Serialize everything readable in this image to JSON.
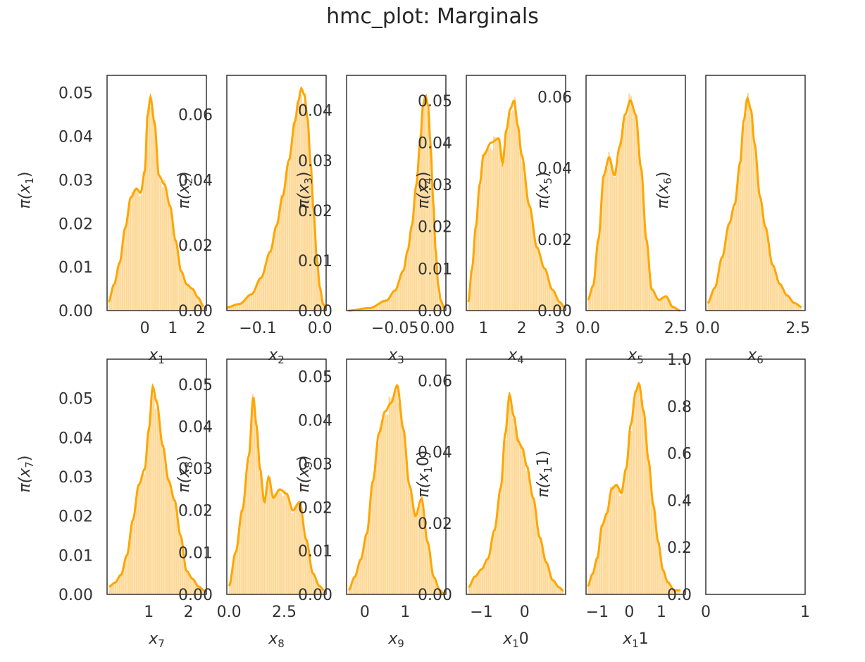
{
  "figure": {
    "title": "hmc_plot: Marginals"
  },
  "colors": {
    "hist_fill": "#fdd080",
    "kde": "#ffa500",
    "axes": "#262626",
    "text": "#333333"
  },
  "chart_data": [
    {
      "type": "area",
      "ylabel_base": "π(x",
      "ylabel_sub": "1",
      "xlabel_base": "x",
      "xlabel_sub": "1",
      "xlim": [
        -1.35,
        2.2
      ],
      "ylim": [
        0,
        0.054
      ],
      "xticks": [
        0,
        1,
        2
      ],
      "xtick_labels": [
        "0",
        "1",
        "2"
      ],
      "yticks": [
        0,
        0.01,
        0.02,
        0.03,
        0.04,
        0.05
      ],
      "ytick_labels": [
        "0.00",
        "0.01",
        "0.02",
        "0.03",
        "0.04",
        "0.05"
      ],
      "x": [
        -1.3,
        -1.1,
        -0.9,
        -0.7,
        -0.5,
        -0.3,
        -0.15,
        0,
        0.1,
        0.2,
        0.35,
        0.5,
        0.7,
        0.9,
        1.1,
        1.3,
        1.5,
        1.7,
        1.9,
        2.1
      ],
      "y": [
        0.002,
        0.006,
        0.011,
        0.019,
        0.026,
        0.028,
        0.027,
        0.032,
        0.045,
        0.049,
        0.043,
        0.031,
        0.029,
        0.024,
        0.016,
        0.009,
        0.006,
        0.005,
        0.003,
        0.001
      ]
    },
    {
      "type": "area",
      "ylabel_base": "π(x",
      "ylabel_sub": "2",
      "xlabel_base": "x",
      "xlabel_sub": "2",
      "xlim": [
        -0.15,
        0.01
      ],
      "ylim": [
        0,
        0.072
      ],
      "xticks": [
        -0.1,
        -0.0
      ],
      "xtick_labels": [
        "−0.1",
        "0.0"
      ],
      "yticks": [
        0,
        0.02,
        0.04,
        0.06
      ],
      "ytick_labels": [
        "0.00",
        "0.02",
        "0.04",
        "0.06"
      ],
      "x": [
        -0.15,
        -0.13,
        -0.11,
        -0.095,
        -0.08,
        -0.07,
        -0.06,
        -0.05,
        -0.04,
        -0.035,
        -0.03,
        -0.025,
        -0.02,
        -0.015,
        -0.01,
        -0.005,
        0,
        0.005,
        0.01
      ],
      "y": [
        0.001,
        0.002,
        0.005,
        0.01,
        0.018,
        0.026,
        0.035,
        0.046,
        0.058,
        0.064,
        0.068,
        0.066,
        0.059,
        0.045,
        0.03,
        0.016,
        0.007,
        0.002,
        0.001
      ]
    },
    {
      "type": "area",
      "ylabel_base": "π(x",
      "ylabel_sub": "3",
      "xlabel_base": "x",
      "xlabel_sub": "3",
      "xlim": [
        -0.107,
        0.01
      ],
      "ylim": [
        0,
        0.047
      ],
      "xticks": [
        -0.05,
        0.0
      ],
      "xtick_labels": [
        "−0.05",
        "0.00"
      ],
      "yticks": [
        0,
        0.01,
        0.02,
        0.03,
        0.04
      ],
      "ytick_labels": [
        "0.00",
        "0.01",
        "0.02",
        "0.03",
        "0.04"
      ],
      "x": [
        -0.105,
        -0.08,
        -0.06,
        -0.05,
        -0.04,
        -0.035,
        -0.03,
        -0.025,
        -0.02,
        -0.017,
        -0.014,
        -0.011,
        -0.008,
        -0.005,
        -0.002,
        0.001,
        0.004,
        0.008
      ],
      "y": [
        0,
        0.0005,
        0.002,
        0.004,
        0.008,
        0.012,
        0.017,
        0.025,
        0.034,
        0.041,
        0.043,
        0.041,
        0.033,
        0.022,
        0.012,
        0.005,
        0.002,
        0.0005
      ]
    },
    {
      "type": "area",
      "ylabel_base": "π(x",
      "ylabel_sub": "4",
      "xlabel_base": "x",
      "xlabel_sub": "4",
      "xlim": [
        0.55,
        3.15
      ],
      "ylim": [
        0,
        0.056
      ],
      "xticks": [
        1,
        2,
        3
      ],
      "xtick_labels": [
        "1",
        "2",
        "3"
      ],
      "yticks": [
        0,
        0.01,
        0.02,
        0.03,
        0.04,
        0.05
      ],
      "ytick_labels": [
        "0.00",
        "0.01",
        "0.02",
        "0.03",
        "0.04",
        "0.05"
      ],
      "x": [
        0.6,
        0.7,
        0.8,
        0.9,
        1.0,
        1.2,
        1.4,
        1.5,
        1.6,
        1.7,
        1.8,
        1.9,
        2.0,
        2.2,
        2.4,
        2.6,
        2.8,
        3.0,
        3.1
      ],
      "y": [
        0.002,
        0.01,
        0.02,
        0.03,
        0.037,
        0.04,
        0.041,
        0.035,
        0.043,
        0.048,
        0.05,
        0.044,
        0.037,
        0.025,
        0.015,
        0.01,
        0.005,
        0.002,
        0.001
      ]
    },
    {
      "type": "area",
      "ylabel_base": "π(x",
      "ylabel_sub": "5",
      "xlabel_base": "x",
      "xlabel_sub": "5",
      "xlim": [
        -0.05,
        2.75
      ],
      "ylim": [
        0,
        0.066
      ],
      "xticks": [
        0,
        2.5
      ],
      "xtick_labels": [
        "0.0",
        "2.5"
      ],
      "yticks": [
        0,
        0.02,
        0.04,
        0.06
      ],
      "ytick_labels": [
        "0.00",
        "0.02",
        "0.04",
        "0.06"
      ],
      "x": [
        0,
        0.15,
        0.3,
        0.45,
        0.6,
        0.75,
        0.9,
        1.05,
        1.2,
        1.35,
        1.5,
        1.65,
        1.8,
        2.0,
        2.2,
        2.4,
        2.6
      ],
      "y": [
        0.003,
        0.007,
        0.02,
        0.038,
        0.043,
        0.038,
        0.046,
        0.055,
        0.059,
        0.055,
        0.04,
        0.02,
        0.006,
        0.003,
        0.004,
        0.001,
        0
      ]
    },
    {
      "type": "area",
      "ylabel_base": "π(x",
      "ylabel_sub": "6",
      "xlabel_base": "x",
      "xlabel_sub": "6",
      "xlim": [
        -0.05,
        2.7
      ],
      "ylim": [
        0,
        0.062
      ],
      "xticks": [
        0,
        2.5
      ],
      "xtick_labels": [
        "0.0",
        "2.5"
      ],
      "yticks": [],
      "ytick_labels": [],
      "x": [
        0,
        0.2,
        0.4,
        0.6,
        0.75,
        0.9,
        1.0,
        1.1,
        1.2,
        1.3,
        1.45,
        1.6,
        1.8,
        2.0,
        2.2,
        2.4,
        2.6
      ],
      "y": [
        0.002,
        0.006,
        0.014,
        0.023,
        0.028,
        0.039,
        0.05,
        0.056,
        0.053,
        0.044,
        0.03,
        0.022,
        0.012,
        0.007,
        0.004,
        0.002,
        0.001
      ]
    },
    {
      "type": "area",
      "ylabel_base": "π(x",
      "ylabel_sub": "7",
      "xlabel_base": "x",
      "xlabel_sub": "7",
      "xlim": [
        -0.05,
        2.45
      ],
      "ylim": [
        0,
        0.06
      ],
      "xticks": [
        1,
        2
      ],
      "xtick_labels": [
        "1",
        "2"
      ],
      "yticks": [
        0,
        0.01,
        0.02,
        0.03,
        0.04,
        0.05
      ],
      "ytick_labels": [
        "0.00",
        "0.01",
        "0.02",
        "0.03",
        "0.04",
        "0.05"
      ],
      "x": [
        0,
        0.15,
        0.3,
        0.45,
        0.6,
        0.75,
        0.9,
        1.0,
        1.1,
        1.2,
        1.35,
        1.5,
        1.65,
        1.8,
        1.95,
        2.1,
        2.25,
        2.4
      ],
      "y": [
        0.002,
        0.003,
        0.005,
        0.01,
        0.019,
        0.028,
        0.032,
        0.042,
        0.053,
        0.049,
        0.038,
        0.029,
        0.024,
        0.015,
        0.006,
        0.004,
        0.002,
        0.001
      ]
    },
    {
      "type": "area",
      "ylabel_base": "π(x",
      "ylabel_sub": "8",
      "xlabel_base": "x",
      "xlabel_sub": "8",
      "xlim": [
        -0.1,
        4.4
      ],
      "ylim": [
        0,
        0.056
      ],
      "xticks": [
        0,
        2.5
      ],
      "xtick_labels": [
        "0.0",
        "2.5"
      ],
      "yticks": [
        0,
        0.01,
        0.02,
        0.03,
        0.04,
        0.05
      ],
      "ytick_labels": [
        "0.00",
        "0.01",
        "0.02",
        "0.03",
        "0.04",
        "0.05"
      ],
      "x": [
        0,
        0.3,
        0.6,
        0.9,
        1.1,
        1.25,
        1.4,
        1.6,
        1.8,
        2.0,
        2.3,
        2.6,
        2.9,
        3.2,
        3.5,
        3.8,
        4.1,
        4.3
      ],
      "y": [
        0.002,
        0.01,
        0.02,
        0.033,
        0.047,
        0.04,
        0.03,
        0.022,
        0.028,
        0.023,
        0.025,
        0.024,
        0.02,
        0.022,
        0.013,
        0.005,
        0.002,
        0.001
      ]
    },
    {
      "type": "area",
      "ylabel_base": "π(x",
      "ylabel_sub": "9",
      "xlabel_base": "x",
      "xlabel_sub": "9",
      "xlim": [
        -0.45,
        2.0
      ],
      "ylim": [
        0,
        0.054
      ],
      "xticks": [
        0,
        1
      ],
      "xtick_labels": [
        "0",
        "1"
      ],
      "yticks": [
        0,
        0.01,
        0.02,
        0.03,
        0.04,
        0.05
      ],
      "ytick_labels": [
        "0.00",
        "0.01",
        "0.02",
        "0.03",
        "0.04",
        "0.05"
      ],
      "x": [
        -0.4,
        -0.25,
        -0.1,
        0.05,
        0.2,
        0.35,
        0.5,
        0.65,
        0.8,
        0.95,
        1.1,
        1.25,
        1.4,
        1.55,
        1.7,
        1.85,
        1.95
      ],
      "y": [
        0.001,
        0.004,
        0.008,
        0.014,
        0.026,
        0.037,
        0.042,
        0.044,
        0.048,
        0.038,
        0.025,
        0.018,
        0.022,
        0.012,
        0.004,
        0.001,
        0
      ]
    },
    {
      "type": "area",
      "ylabel_base": "π(x",
      "ylabel_sub": "1",
      "ylabel_suffix": "0)",
      "xlabel_base": "x",
      "xlabel_sub": "1",
      "xlabel_suffix": "0",
      "xlim": [
        -1.35,
        0.95
      ],
      "ylim": [
        0,
        0.066
      ],
      "xticks": [
        -1,
        0
      ],
      "xtick_labels": [
        "−1",
        "0"
      ],
      "yticks": [
        0,
        0.02,
        0.04,
        0.06
      ],
      "ytick_labels": [
        "0.00",
        "0.02",
        "0.04",
        "0.06"
      ],
      "x": [
        -1.3,
        -1.15,
        -1.0,
        -0.85,
        -0.7,
        -0.55,
        -0.45,
        -0.35,
        -0.25,
        -0.15,
        -0.05,
        0.05,
        0.2,
        0.35,
        0.5,
        0.65,
        0.8,
        0.9
      ],
      "y": [
        0.002,
        0.005,
        0.007,
        0.01,
        0.018,
        0.03,
        0.045,
        0.056,
        0.05,
        0.043,
        0.041,
        0.036,
        0.027,
        0.016,
        0.009,
        0.004,
        0.002,
        0.001
      ]
    },
    {
      "type": "area",
      "ylabel_base": "π(x",
      "ylabel_sub": "1",
      "ylabel_suffix": "1)",
      "xlabel_base": "x",
      "xlabel_sub": "1",
      "xlabel_suffix": "1",
      "xlim": [
        -1.35,
        1.75
      ],
      "ylim": [
        0,
        0.058
      ],
      "xticks": [
        -1,
        0,
        1
      ],
      "xtick_labels": [
        "−1",
        "0",
        "1"
      ],
      "yticks": [],
      "ytick_labels": [],
      "x": [
        -1.3,
        -1.15,
        -1.0,
        -0.85,
        -0.7,
        -0.55,
        -0.4,
        -0.25,
        -0.1,
        0.05,
        0.2,
        0.3,
        0.45,
        0.6,
        0.75,
        0.9,
        1.05,
        1.2,
        1.4,
        1.6
      ],
      "y": [
        0.002,
        0.005,
        0.009,
        0.017,
        0.02,
        0.026,
        0.027,
        0.025,
        0.031,
        0.042,
        0.05,
        0.052,
        0.045,
        0.033,
        0.022,
        0.013,
        0.006,
        0.003,
        0.001,
        0.001
      ]
    },
    {
      "type": "table",
      "empty": true,
      "xlim": [
        0,
        1
      ],
      "ylim": [
        0,
        1
      ],
      "xticks": [
        0,
        1
      ],
      "xtick_labels": [
        "0",
        "1"
      ],
      "yticks": [
        0,
        0.2,
        0.4,
        0.6,
        0.8,
        1.0
      ],
      "ytick_labels": [
        "0.0",
        "0.2",
        "0.4",
        "0.6",
        "0.8",
        "1.0"
      ]
    }
  ]
}
